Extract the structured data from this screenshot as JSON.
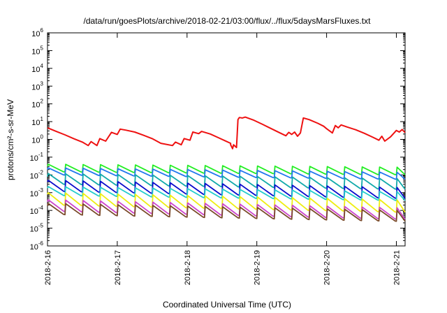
{
  "chart_data": {
    "type": "line",
    "title": "/data/run/goesPlots/archive/2018-02-21/03:00/flux/../flux/5daysMarsFluxes.txt",
    "xlabel": "Coordinated Universal Time (UTC)",
    "ylabel": "protons/cm²-s-sr-MeV",
    "y_scale": "log",
    "ylim_exp": [
      -6,
      6
    ],
    "xlim": [
      "2018-02-16 00:00",
      "2018-02-21 03:00"
    ],
    "x_ticks": [
      "2018-2-16",
      "2018-2-17",
      "2018-2-18",
      "2018-2-19",
      "2018-2-20",
      "2018-2-21"
    ],
    "grid": false,
    "legend": "none",
    "series": [
      {
        "color": "#ee1111",
        "points": [
          [
            "2018-02-16 00:00",
            4.5
          ],
          [
            "2018-02-16 03:00",
            2.8
          ],
          [
            "2018-02-16 06:00",
            1.8
          ],
          [
            "2018-02-16 09:00",
            1.1
          ],
          [
            "2018-02-16 12:00",
            0.7
          ],
          [
            "2018-02-16 14:00",
            0.45
          ],
          [
            "2018-02-16 15:00",
            0.75
          ],
          [
            "2018-02-16 17:00",
            0.45
          ],
          [
            "2018-02-16 18:00",
            1.1
          ],
          [
            "2018-02-16 20:00",
            0.8
          ],
          [
            "2018-02-16 22:00",
            2.5
          ],
          [
            "2018-02-17 00:00",
            1.9
          ],
          [
            "2018-02-17 01:00",
            3.8
          ],
          [
            "2018-02-17 03:00",
            3.3
          ],
          [
            "2018-02-17 06:00",
            2.6
          ],
          [
            "2018-02-17 09:00",
            1.7
          ],
          [
            "2018-02-17 12:00",
            1.1
          ],
          [
            "2018-02-17 15:00",
            0.6
          ],
          [
            "2018-02-17 19:00",
            0.45
          ],
          [
            "2018-02-17 20:00",
            0.7
          ],
          [
            "2018-02-17 22:00",
            0.5
          ],
          [
            "2018-02-17 23:00",
            1.1
          ],
          [
            "2018-02-18 01:00",
            0.9
          ],
          [
            "2018-02-18 02:00",
            2.6
          ],
          [
            "2018-02-18 04:00",
            2.1
          ],
          [
            "2018-02-18 05:00",
            2.8
          ],
          [
            "2018-02-18 08:00",
            2.0
          ],
          [
            "2018-02-18 11:00",
            1.2
          ],
          [
            "2018-02-18 13:00",
            0.85
          ],
          [
            "2018-02-18 15:00",
            0.6
          ],
          [
            "2018-02-18 15:00",
            0.5
          ],
          [
            "2018-02-18 15:40",
            0.3
          ],
          [
            "2018-02-18 16:00",
            0.5
          ],
          [
            "2018-02-18 17:00",
            0.35
          ],
          [
            "2018-02-18 17:15",
            1.9
          ],
          [
            "2018-02-18 17:30",
            13
          ],
          [
            "2018-02-18 18:00",
            17
          ],
          [
            "2018-02-18 19:00",
            16
          ],
          [
            "2018-02-18 20:00",
            18
          ],
          [
            "2018-02-18 23:00",
            12
          ],
          [
            "2018-02-19 02:00",
            7
          ],
          [
            "2018-02-19 05:00",
            4
          ],
          [
            "2018-02-19 08:00",
            2.3
          ],
          [
            "2018-02-19 10:00",
            1.6
          ],
          [
            "2018-02-19 11:00",
            2.5
          ],
          [
            "2018-02-19 12:00",
            1.9
          ],
          [
            "2018-02-19 13:00",
            2.6
          ],
          [
            "2018-02-19 14:00",
            1.5
          ],
          [
            "2018-02-19 15:00",
            2.3
          ],
          [
            "2018-02-19 16:00",
            16
          ],
          [
            "2018-02-19 18:00",
            13
          ],
          [
            "2018-02-19 21:00",
            8
          ],
          [
            "2018-02-19 23:00",
            5.5
          ],
          [
            "2018-02-20 00:00",
            4
          ],
          [
            "2018-02-20 02:00",
            2.3
          ],
          [
            "2018-02-20 03:00",
            6
          ],
          [
            "2018-02-20 04:00",
            4.5
          ],
          [
            "2018-02-20 05:00",
            6.5
          ],
          [
            "2018-02-20 07:00",
            5
          ],
          [
            "2018-02-20 10:00",
            3.5
          ],
          [
            "2018-02-20 13:00",
            2.2
          ],
          [
            "2018-02-20 16:00",
            1.3
          ],
          [
            "2018-02-20 18:00",
            0.9
          ],
          [
            "2018-02-20 19:00",
            1.5
          ],
          [
            "2018-02-20 20:00",
            0.8
          ],
          [
            "2018-02-20 22:00",
            1.4
          ],
          [
            "2018-02-21 00:00",
            3.2
          ],
          [
            "2018-02-21 01:00",
            2.6
          ],
          [
            "2018-02-21 02:00",
            3.6
          ],
          [
            "2018-02-21 03:00",
            2.4
          ]
        ]
      },
      {
        "color": "#22ee22",
        "sawtooth": {
          "start": 0.03,
          "high": 0.04,
          "low": 0.015,
          "end": 0.02
        }
      },
      {
        "color": "#2277ee",
        "sawtooth": {
          "start": 0.02,
          "high": 0.025,
          "low": 0.01,
          "end": 0.011
        }
      },
      {
        "color": "#11aaaa",
        "sawtooth": {
          "start": 0.008,
          "high": 0.012,
          "low": 0.003,
          "end": 0.004
        }
      },
      {
        "color": "#0a0acc",
        "sawtooth": {
          "start": 0.004,
          "high": 0.005,
          "low": 0.0012,
          "end": 0.0015
        }
      },
      {
        "color": "#22cccc",
        "sawtooth": {
          "start": 0.0018,
          "high": 0.0022,
          "low": 0.0007,
          "end": 0.0009
        }
      },
      {
        "color": "#eeee11",
        "sawtooth": {
          "start": 0.0008,
          "high": 0.001,
          "low": 0.0002,
          "end": 0.0003
        }
      },
      {
        "color": "#cc44cc",
        "sawtooth": {
          "start": 0.0003,
          "high": 0.0004,
          "low": 9e-05,
          "end": 0.0001
        }
      },
      {
        "color": "#7a4a2a",
        "sawtooth": {
          "start": 0.00018,
          "high": 0.00025,
          "low": 6e-05,
          "end": 7e-05
        }
      }
    ]
  }
}
